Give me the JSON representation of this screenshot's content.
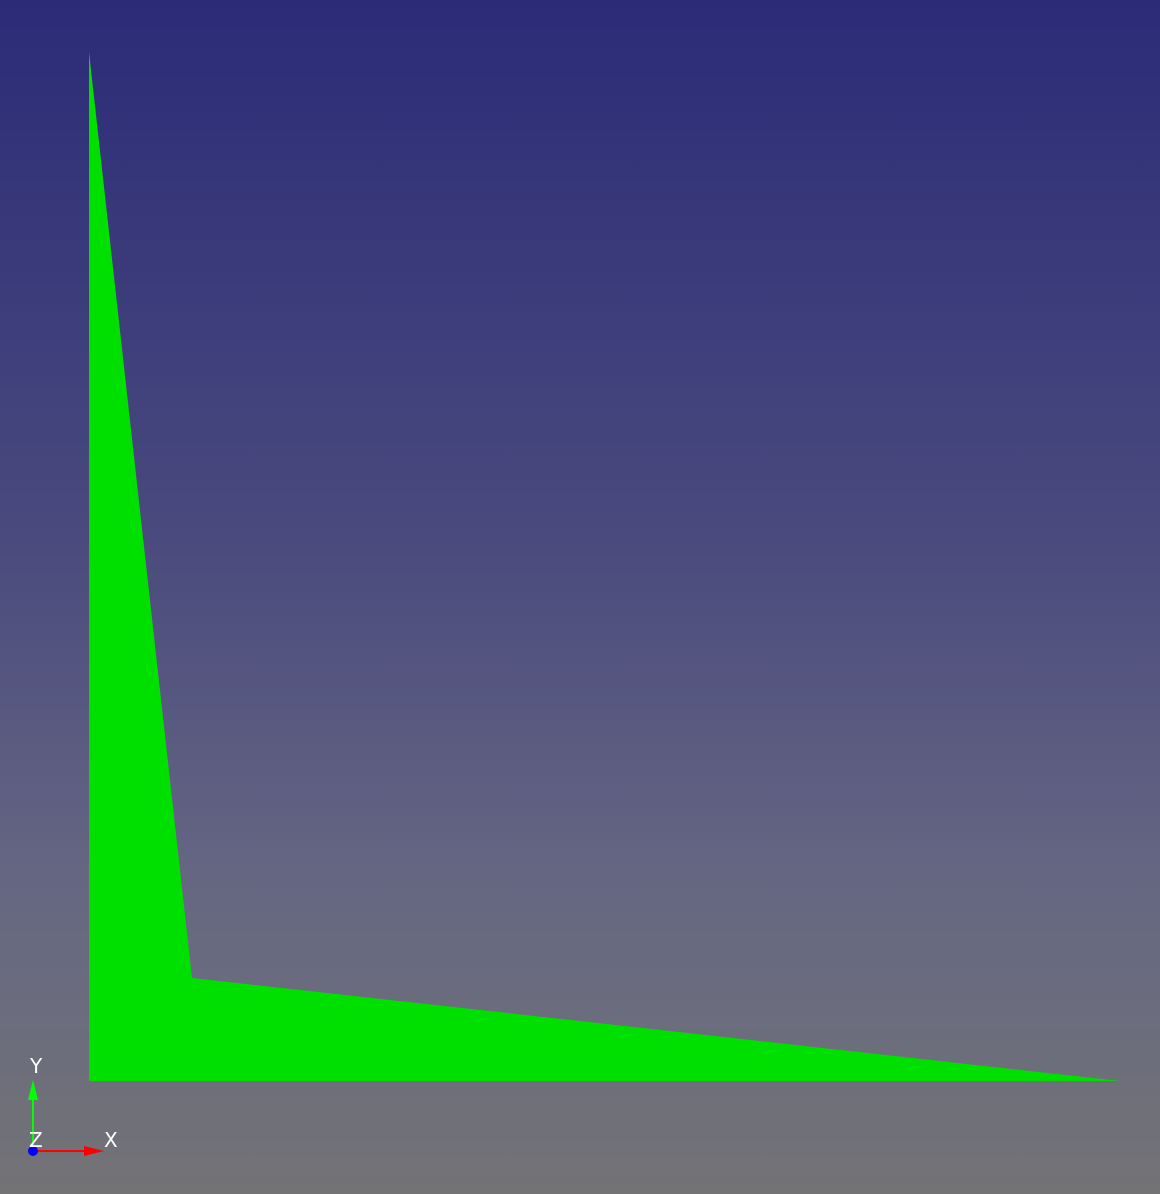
{
  "viewer": {
    "background_top": "#2b2b78",
    "background_bottom": "#737376",
    "shape_color": "#00e000"
  },
  "axis_indicator": {
    "x_label": "X",
    "y_label": "Y",
    "z_label": "Z",
    "x_color": "#ff0000",
    "y_color": "#00ff00",
    "z_color": "#0000ff"
  }
}
